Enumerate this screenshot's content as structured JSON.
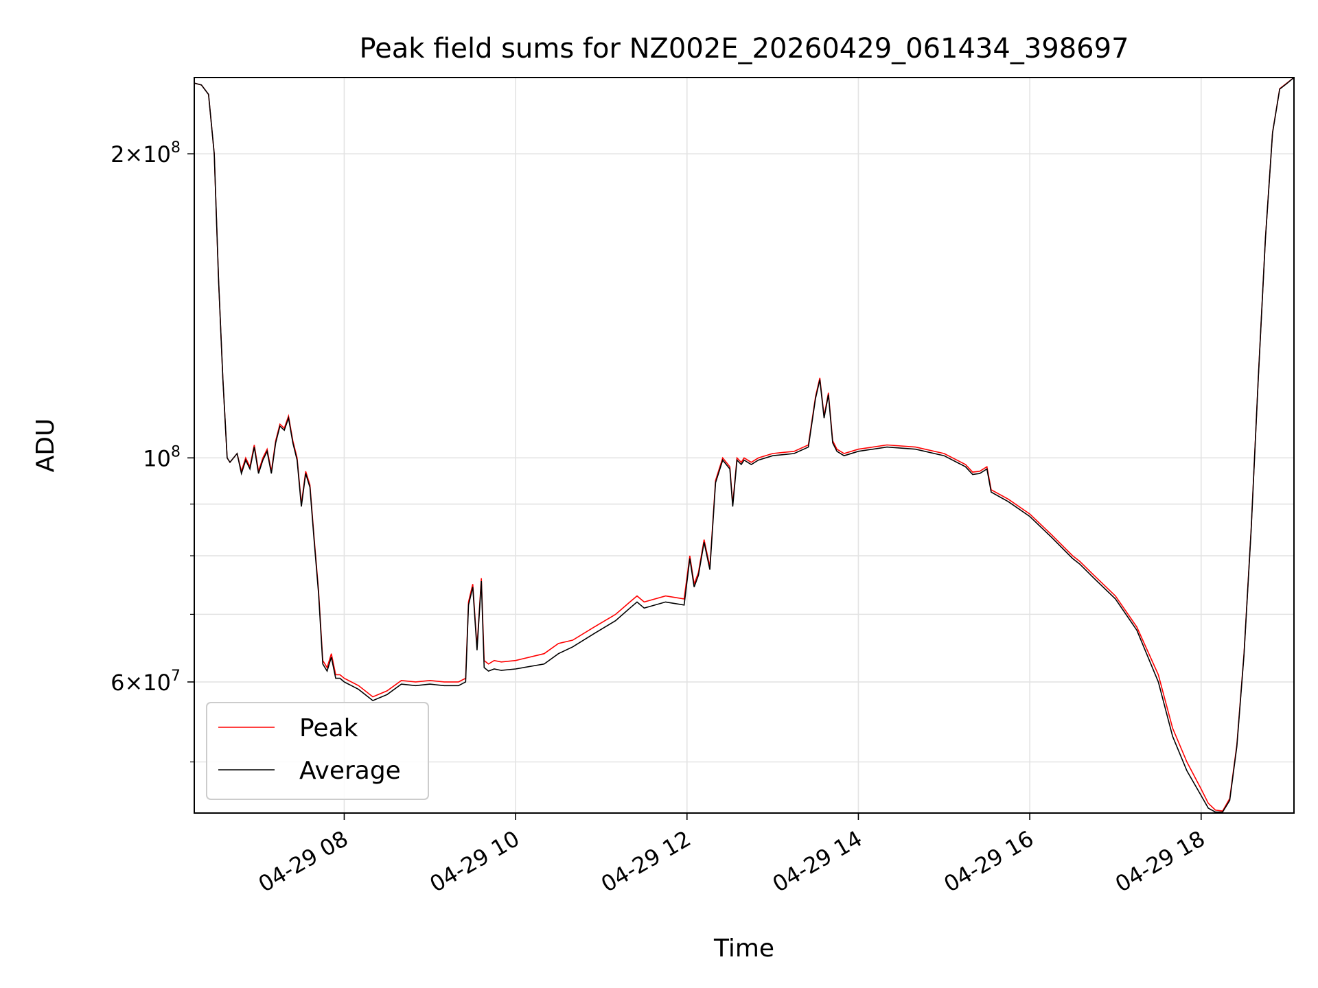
{
  "chart_data": {
    "type": "line",
    "title": "Peak field sums for NZ002E_20260429_061434_398697",
    "xlabel": "Time",
    "ylabel": "ADU",
    "yscale": "log",
    "xlim": [
      "04-29 06:15",
      "04-29 19:05"
    ],
    "ylim": [
      44500000,
      238000000
    ],
    "x_ticks": [
      "04-29 08",
      "04-29 10",
      "04-29 12",
      "04-29 14",
      "04-29 16",
      "04-29 18"
    ],
    "x_tick_values": [
      "04-29 08:00",
      "04-29 10:00",
      "04-29 12:00",
      "04-29 14:00",
      "04-29 16:00",
      "04-29 18:00"
    ],
    "y_ticks": [
      {
        "value": 60000000,
        "mantissa": "6",
        "exponent": "7"
      },
      {
        "value": 100000000,
        "mantissa": "",
        "exponent": "8"
      },
      {
        "value": 200000000,
        "mantissa": "2",
        "exponent": "8"
      }
    ],
    "y_minor_ticks": [
      50000000,
      70000000,
      80000000,
      90000000
    ],
    "grid": true,
    "legend_position": "lower-left",
    "colors": {
      "peak": "#ff0000",
      "average": "#000000"
    },
    "series": [
      {
        "name": "Peak",
        "color": "#ff0000",
        "x": [
          "04-29 06:15",
          "04-29 06:20",
          "04-29 06:25",
          "04-29 06:29",
          "04-29 06:32",
          "04-29 06:35",
          "04-29 06:38",
          "04-29 06:40",
          "04-29 06:45",
          "04-29 06:48",
          "04-29 06:51",
          "04-29 06:54",
          "04-29 06:57",
          "04-29 07:00",
          "04-29 07:03",
          "04-29 07:06",
          "04-29 07:09",
          "04-29 07:12",
          "04-29 07:15",
          "04-29 07:18",
          "04-29 07:21",
          "04-29 07:24",
          "04-29 07:27",
          "04-29 07:30",
          "04-29 07:33",
          "04-29 07:36",
          "04-29 07:39",
          "04-29 07:42",
          "04-29 07:45",
          "04-29 07:48",
          "04-29 07:51",
          "04-29 07:54",
          "04-29 07:57",
          "04-29 08:00",
          "04-29 08:10",
          "04-29 08:20",
          "04-29 08:30",
          "04-29 08:40",
          "04-29 08:50",
          "04-29 09:00",
          "04-29 09:10",
          "04-29 09:20",
          "04-29 09:25",
          "04-29 09:27",
          "04-29 09:30",
          "04-29 09:33",
          "04-29 09:36",
          "04-29 09:38",
          "04-29 09:41",
          "04-29 09:45",
          "04-29 09:50",
          "04-29 10:00",
          "04-29 10:20",
          "04-29 10:30",
          "04-29 10:40",
          "04-29 10:55",
          "04-29 11:10",
          "04-29 11:20",
          "04-29 11:25",
          "04-29 11:30",
          "04-29 11:45",
          "04-29 11:58",
          "04-29 12:02",
          "04-29 12:05",
          "04-29 12:08",
          "04-29 12:12",
          "04-29 12:16",
          "04-29 12:20",
          "04-29 12:25",
          "04-29 12:30",
          "04-29 12:32",
          "04-29 12:35",
          "04-29 12:38",
          "04-29 12:40",
          "04-29 12:45",
          "04-29 12:50",
          "04-29 13:00",
          "04-29 13:15",
          "04-29 13:25",
          "04-29 13:30",
          "04-29 13:33",
          "04-29 13:36",
          "04-29 13:39",
          "04-29 13:42",
          "04-29 13:45",
          "04-29 13:50",
          "04-29 14:00",
          "04-29 14:20",
          "04-29 14:40",
          "04-29 15:00",
          "04-29 15:15",
          "04-29 15:20",
          "04-29 15:25",
          "04-29 15:30",
          "04-29 15:33",
          "04-29 15:45",
          "04-29 16:00",
          "04-29 16:15",
          "04-29 16:30",
          "04-29 16:35",
          "04-29 16:45",
          "04-29 17:00",
          "04-29 17:15",
          "04-29 17:30",
          "04-29 17:40",
          "04-29 17:50",
          "04-29 18:00",
          "04-29 18:05",
          "04-29 18:10",
          "04-29 18:15",
          "04-29 18:20",
          "04-29 18:25",
          "04-29 18:30",
          "04-29 18:35",
          "04-29 18:40",
          "04-29 18:45",
          "04-29 18:50",
          "04-29 18:55",
          "04-29 19:00",
          "04-29 19:05"
        ],
        "y": [
          235000000,
          234000000,
          229000000,
          200000000,
          150000000,
          120000000,
          100000000,
          99000000,
          101000000,
          97000000,
          100000000,
          98000000,
          103000000,
          97000000,
          100000000,
          102000000,
          97000000,
          104000000,
          108000000,
          107000000,
          110000000,
          104000000,
          100000000,
          90000000,
          97000000,
          94000000,
          83000000,
          74000000,
          63000000,
          62000000,
          64000000,
          61000000,
          61000000,
          60500000,
          59500000,
          58000000,
          58800000,
          60200000,
          60000000,
          60200000,
          60000000,
          60000000,
          60500000,
          72000000,
          75000000,
          65000000,
          76000000,
          63000000,
          62500000,
          63000000,
          62800000,
          63000000,
          64000000,
          65500000,
          66000000,
          68000000,
          70000000,
          72000000,
          73000000,
          72000000,
          73000000,
          72500000,
          80000000,
          75000000,
          77000000,
          83000000,
          78000000,
          95000000,
          100000000,
          98000000,
          90000000,
          100000000,
          99000000,
          100000000,
          99000000,
          100000000,
          101000000,
          101500000,
          103000000,
          115000000,
          120000000,
          110000000,
          116000000,
          104000000,
          102000000,
          101000000,
          102000000,
          103000000,
          102500000,
          101000000,
          98500000,
          96800000,
          97000000,
          98000000,
          93000000,
          91000000,
          88000000,
          84000000,
          80000000,
          79000000,
          76500000,
          73000000,
          68000000,
          61000000,
          54000000,
          50000000,
          47000000,
          45500000,
          44800000,
          44700000,
          46000000,
          52000000,
          64000000,
          85000000,
          120000000,
          165000000,
          210000000,
          232000000,
          235000000,
          238000000
        ]
      },
      {
        "name": "Average",
        "color": "#000000",
        "x": [
          "04-29 06:15",
          "04-29 06:20",
          "04-29 06:25",
          "04-29 06:29",
          "04-29 06:32",
          "04-29 06:35",
          "04-29 06:38",
          "04-29 06:40",
          "04-29 06:45",
          "04-29 06:48",
          "04-29 06:51",
          "04-29 06:54",
          "04-29 06:57",
          "04-29 07:00",
          "04-29 07:03",
          "04-29 07:06",
          "04-29 07:09",
          "04-29 07:12",
          "04-29 07:15",
          "04-29 07:18",
          "04-29 07:21",
          "04-29 07:24",
          "04-29 07:27",
          "04-29 07:30",
          "04-29 07:33",
          "04-29 07:36",
          "04-29 07:39",
          "04-29 07:42",
          "04-29 07:45",
          "04-29 07:48",
          "04-29 07:51",
          "04-29 07:54",
          "04-29 07:57",
          "04-29 08:00",
          "04-29 08:10",
          "04-29 08:20",
          "04-29 08:30",
          "04-29 08:40",
          "04-29 08:50",
          "04-29 09:00",
          "04-29 09:10",
          "04-29 09:20",
          "04-29 09:25",
          "04-29 09:27",
          "04-29 09:30",
          "04-29 09:33",
          "04-29 09:36",
          "04-29 09:38",
          "04-29 09:41",
          "04-29 09:45",
          "04-29 09:50",
          "04-29 10:00",
          "04-29 10:20",
          "04-29 10:30",
          "04-29 10:40",
          "04-29 10:55",
          "04-29 11:10",
          "04-29 11:20",
          "04-29 11:25",
          "04-29 11:30",
          "04-29 11:45",
          "04-29 11:58",
          "04-29 12:02",
          "04-29 12:05",
          "04-29 12:08",
          "04-29 12:12",
          "04-29 12:16",
          "04-29 12:20",
          "04-29 12:25",
          "04-29 12:30",
          "04-29 12:32",
          "04-29 12:35",
          "04-29 12:38",
          "04-29 12:40",
          "04-29 12:45",
          "04-29 12:50",
          "04-29 13:00",
          "04-29 13:15",
          "04-29 13:25",
          "04-29 13:30",
          "04-29 13:33",
          "04-29 13:36",
          "04-29 13:39",
          "04-29 13:42",
          "04-29 13:45",
          "04-29 13:50",
          "04-29 14:00",
          "04-29 14:20",
          "04-29 14:40",
          "04-29 15:00",
          "04-29 15:15",
          "04-29 15:20",
          "04-29 15:25",
          "04-29 15:30",
          "04-29 15:33",
          "04-29 15:45",
          "04-29 16:00",
          "04-29 16:15",
          "04-29 16:30",
          "04-29 16:35",
          "04-29 16:45",
          "04-29 17:00",
          "04-29 17:15",
          "04-29 17:30",
          "04-29 17:40",
          "04-29 17:50",
          "04-29 18:00",
          "04-29 18:05",
          "04-29 18:10",
          "04-29 18:15",
          "04-29 18:20",
          "04-29 18:25",
          "04-29 18:30",
          "04-29 18:35",
          "04-29 18:40",
          "04-29 18:45",
          "04-29 18:50",
          "04-29 18:55",
          "04-29 19:00",
          "04-29 19:05"
        ],
        "y": [
          235000000,
          234000000,
          229000000,
          200000000,
          150000000,
          120000000,
          100000000,
          99000000,
          101000000,
          96500000,
          99500000,
          97500000,
          102500000,
          96500000,
          99500000,
          101500000,
          96500000,
          103500000,
          107500000,
          106500000,
          109500000,
          103500000,
          99500000,
          89500000,
          96500000,
          93500000,
          82500000,
          73500000,
          62500000,
          61500000,
          63500000,
          60500000,
          60500000,
          60000000,
          59000000,
          57500000,
          58300000,
          59700000,
          59500000,
          59700000,
          59500000,
          59500000,
          60000000,
          71500000,
          74500000,
          64500000,
          75500000,
          62000000,
          61500000,
          61800000,
          61600000,
          61800000,
          62500000,
          64000000,
          65000000,
          67000000,
          69000000,
          71000000,
          72000000,
          71000000,
          72000000,
          71500000,
          79500000,
          74500000,
          76500000,
          82500000,
          77500000,
          94500000,
          99500000,
          97500000,
          89500000,
          99500000,
          98500000,
          99500000,
          98500000,
          99500000,
          100500000,
          101000000,
          102500000,
          114500000,
          119500000,
          109500000,
          115500000,
          103500000,
          101500000,
          100500000,
          101500000,
          102500000,
          102000000,
          100500000,
          98000000,
          96300000,
          96500000,
          97500000,
          92500000,
          90500000,
          87500000,
          83500000,
          79500000,
          78500000,
          76000000,
          72500000,
          67500000,
          60000000,
          53000000,
          49000000,
          46300000,
          45000000,
          44600000,
          44600000,
          45800000,
          51800000,
          63800000,
          84800000,
          119800000,
          164800000,
          209800000,
          231800000,
          234800000,
          238000000
        ]
      }
    ]
  }
}
